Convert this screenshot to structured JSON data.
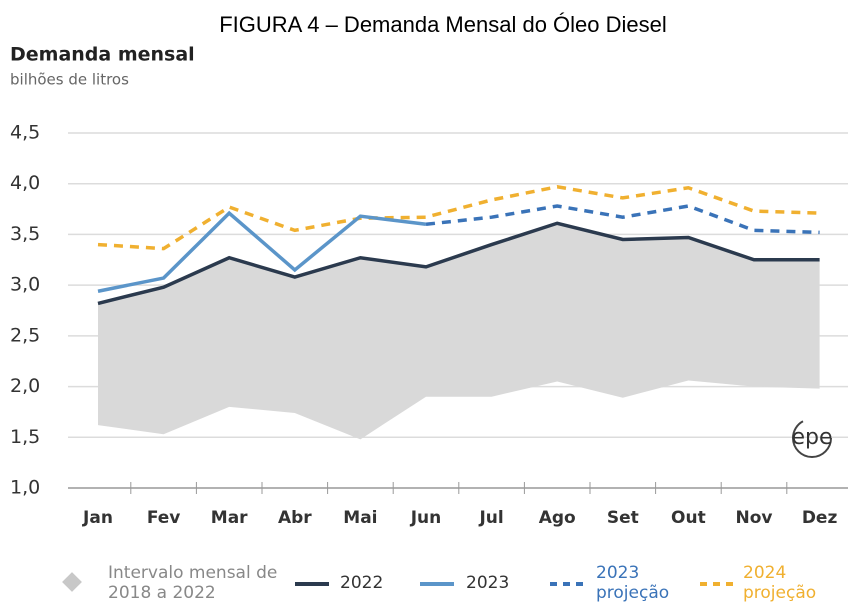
{
  "chart_data": {
    "type": "line",
    "title": "FIGURA  4 – Demanda Mensal do Óleo Diesel",
    "subtitle": "Demanda mensal",
    "y_label": "bilhões de litros",
    "logo": "epe",
    "categories": [
      "Jan",
      "Fev",
      "Mar",
      "Abr",
      "Mai",
      "Jun",
      "Jul",
      "Ago",
      "Set",
      "Out",
      "Nov",
      "Dez"
    ],
    "band": {
      "name": "Intervalo mensal de 2018 a 2022",
      "color": "#d9d9d9",
      "lower": [
        1.62,
        1.53,
        1.8,
        1.74,
        1.48,
        1.9,
        1.9,
        2.05,
        1.89,
        2.06,
        2.0,
        1.98
      ],
      "upper": [
        2.82,
        2.98,
        3.27,
        3.08,
        3.27,
        3.18,
        3.4,
        3.61,
        3.45,
        3.47,
        3.25,
        3.25
      ]
    },
    "series": [
      {
        "name": "2022",
        "color": "#2b3a4e",
        "dashed": false,
        "values": [
          2.82,
          2.98,
          3.27,
          3.08,
          3.27,
          3.18,
          3.4,
          3.61,
          3.45,
          3.47,
          3.25,
          3.25
        ]
      },
      {
        "name": "2023",
        "color": "#5b95c9",
        "dashed": false,
        "values": [
          2.94,
          3.07,
          3.71,
          3.15,
          3.68,
          3.6,
          null,
          null,
          null,
          null,
          null,
          null
        ]
      },
      {
        "name": "2023 projeção",
        "color": "#3a73b8",
        "dashed": true,
        "values": [
          null,
          null,
          null,
          null,
          null,
          3.6,
          3.67,
          3.78,
          3.67,
          3.78,
          3.54,
          3.52
        ]
      },
      {
        "name": "2024 projeção",
        "color": "#f0b030",
        "dashed": true,
        "values": [
          3.4,
          3.36,
          3.77,
          3.54,
          3.66,
          3.67,
          3.84,
          3.97,
          3.86,
          3.96,
          3.73,
          3.71
        ]
      }
    ],
    "ylim": [
      1.0,
      4.5
    ],
    "yticks": [
      {
        "value": 1.0,
        "label": "1,0"
      },
      {
        "value": 1.5,
        "label": "1,5"
      },
      {
        "value": 2.0,
        "label": "2,0"
      },
      {
        "value": 2.5,
        "label": "2,5"
      },
      {
        "value": 3.0,
        "label": "3,0"
      },
      {
        "value": 3.5,
        "label": "3,5"
      },
      {
        "value": 4.0,
        "label": "4,0"
      },
      {
        "value": 4.5,
        "label": "4,5"
      }
    ],
    "grid": true
  }
}
